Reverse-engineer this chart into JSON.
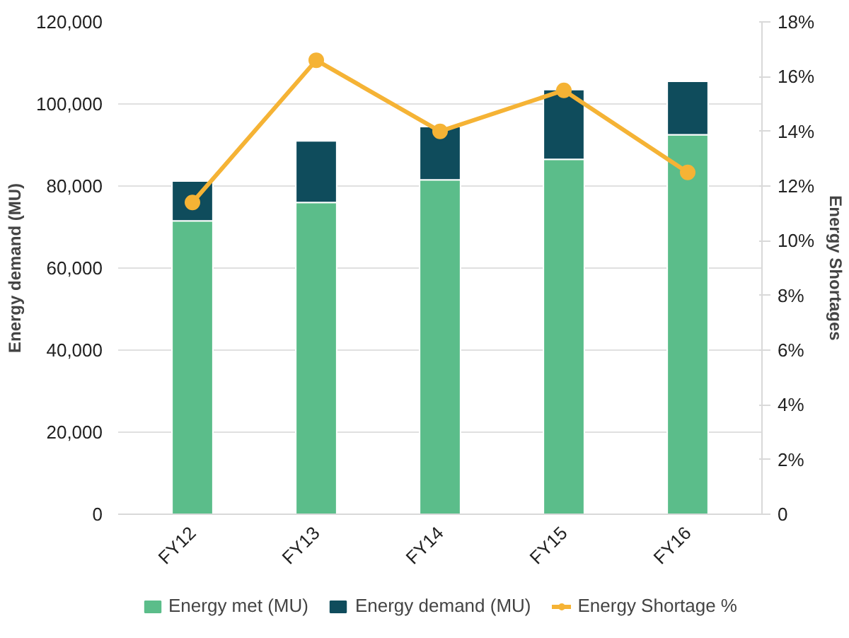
{
  "chart_data": {
    "type": "bar",
    "stacked": true,
    "categories": [
      "FY12",
      "FY13",
      "FY14",
      "FY15",
      "FY16"
    ],
    "ylabel": "Energy demand (MU)",
    "y2label": "Energy Shortages",
    "series": [
      {
        "name": "Energy met (MU)",
        "color": "#5bbd8a",
        "values": [
          71500,
          76000,
          81500,
          86500,
          92500
        ]
      },
      {
        "name": "Energy demand (MU)",
        "color": "#0f4c5c",
        "values": [
          9700,
          15000,
          13000,
          17000,
          13000
        ]
      },
      {
        "name": "Energy Shortage %",
        "type": "line",
        "axis": "y2",
        "color": "#f5b335",
        "marker": "circle",
        "values": [
          11.4,
          16.6,
          14.0,
          15.5,
          12.5
        ]
      }
    ],
    "ylim": [
      0,
      120000
    ],
    "yticks": [
      {
        "value": 0,
        "label": "0"
      },
      {
        "value": 20000,
        "label": "20,000"
      },
      {
        "value": 40000,
        "label": "40,000"
      },
      {
        "value": 60000,
        "label": "60,000"
      },
      {
        "value": 80000,
        "label": "80,000"
      },
      {
        "value": 100000,
        "label": "100,000"
      },
      {
        "value": 120000,
        "label": "120,000"
      }
    ],
    "y2lim": [
      0,
      18
    ],
    "y2ticks": [
      0,
      {
        "value": 2,
        "label": "2%"
      },
      {
        "value": 4,
        "label": "4%"
      },
      {
        "value": 6,
        "label": "6%"
      },
      {
        "value": 8,
        "label": "8%"
      },
      {
        "value": 10,
        "label": "10%"
      },
      {
        "value": 12,
        "label": "12%"
      },
      {
        "value": 14,
        "label": "14%"
      },
      {
        "value": 16,
        "label": "16%"
      },
      {
        "value": 18,
        "label": "18%"
      }
    ],
    "grid": "y",
    "legend": "bottom"
  }
}
